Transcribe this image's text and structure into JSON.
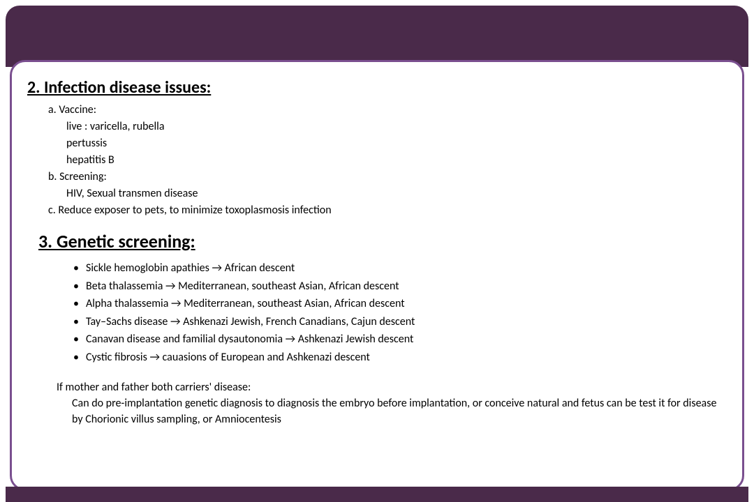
{
  "colors": {
    "header_bg": "#4a2a4a",
    "footer_bg": "#4a2a4a",
    "card_border": "#7a4f8f",
    "card_bg": "#ffffff",
    "text": "#000000"
  },
  "section2": {
    "heading": "2. Infection disease issues:",
    "a": {
      "label": "a. Vaccine:",
      "lines": [
        "live : varicella, rubella",
        "pertussis",
        "hepatitis B"
      ]
    },
    "b": {
      "label": "b. Screening:",
      "lines": [
        "HIV, Sexual transmen disease"
      ]
    },
    "c": {
      "label": "c. Reduce exposer to pets, to minimize toxoplasmosis infection"
    }
  },
  "section3": {
    "heading": "3. Genetic screening:",
    "bullets": [
      "Sickle hemoglobin apathies →  African descent",
      "Beta thalassemia →  Mediterranean, southeast Asian, African descent",
      "Alpha thalassemia →  Mediterranean, southeast Asian, African descent",
      "Tay–Sachs disease →  Ashkenazi Jewish, French Canadians, Cajun descent",
      "Canavan disease and familial dysautonomia → Ashkenazi Jewish descent",
      "Cystic fibrosis → cauasions of European and  Ashkenazi descent"
    ],
    "para_lead": "If mother and father both carriers' disease:",
    "para_body": "Can do pre-implantation genetic diagnosis to diagnosis the embryo before implantation, or conceive natural and fetus can be test it for disease by Chorionic villus sampling, or Amniocentesis"
  },
  "typography": {
    "heading_fontsize_pt": 18,
    "body_fontsize_pt": 12,
    "font_family": "Calibri"
  }
}
